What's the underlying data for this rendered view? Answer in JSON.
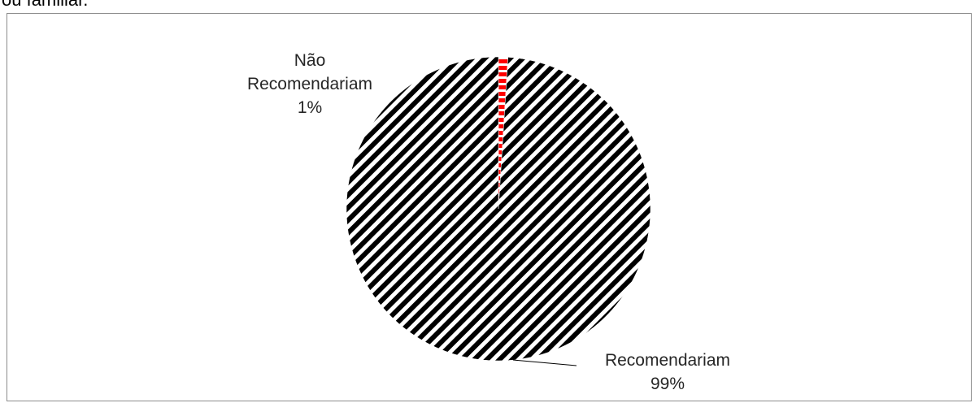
{
  "caption": {
    "visible_fragment": "ou familiar."
  },
  "chart_data": {
    "type": "pie",
    "title": "",
    "slices": [
      {
        "label_lines": [
          "Não",
          "Recomendariam"
        ],
        "name": "Não Recomendariam",
        "value": 1,
        "percent_label": "1%",
        "color": "#ff0000",
        "pattern": "dashed-vertical"
      },
      {
        "label_lines": [
          "Recomendariam"
        ],
        "name": "Recomendariam",
        "value": 99,
        "percent_label": "99%",
        "color": "#000000",
        "pattern": "diagonal-stripes"
      }
    ],
    "start_angle_deg": 0,
    "direction": "clockwise",
    "legend": "none",
    "data_labels": "outside-with-leader"
  }
}
